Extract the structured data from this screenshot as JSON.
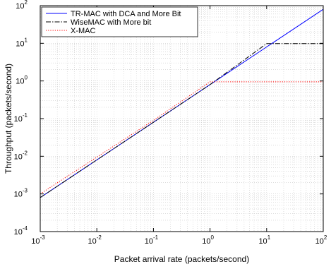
{
  "chart_data": {
    "type": "line",
    "xscale": "log",
    "yscale": "log",
    "xlim": [
      0.001,
      100
    ],
    "ylim": [
      0.0001,
      100
    ],
    "xlabel": "Packet arrival rate (packets/second)",
    "ylabel": "Throughput (packets/second)",
    "x_ticks": [
      {
        "base": "10",
        "exp": "-3"
      },
      {
        "base": "10",
        "exp": "-2"
      },
      {
        "base": "10",
        "exp": "-1"
      },
      {
        "base": "10",
        "exp": "0"
      },
      {
        "base": "10",
        "exp": "1"
      },
      {
        "base": "10",
        "exp": "2"
      }
    ],
    "y_ticks": [
      {
        "base": "10",
        "exp": "-4"
      },
      {
        "base": "10",
        "exp": "-3"
      },
      {
        "base": "10",
        "exp": "-2"
      },
      {
        "base": "10",
        "exp": "-1"
      },
      {
        "base": "10",
        "exp": "0"
      },
      {
        "base": "10",
        "exp": "1"
      },
      {
        "base": "10",
        "exp": "2"
      }
    ],
    "grid": true,
    "legend_position": "top-left",
    "series": [
      {
        "name": "TR-MAC with DCA and More Bit",
        "color": "#0000ff",
        "style": "solid",
        "x": [
          0.001,
          0.01,
          0.1,
          1,
          10,
          100
        ],
        "y": [
          0.0008,
          0.008,
          0.08,
          0.8,
          8,
          80
        ]
      },
      {
        "name": "WiseMAC with More bit",
        "color": "#000000",
        "style": "dashdot",
        "x": [
          0.001,
          0.01,
          0.1,
          1,
          10,
          100
        ],
        "y": [
          0.0008,
          0.008,
          0.08,
          0.8,
          9.8,
          9.8
        ]
      },
      {
        "name": "X-MAC",
        "color": "#ff0000",
        "style": "dotted",
        "x": [
          0.001,
          0.01,
          0.1,
          1,
          100
        ],
        "y": [
          0.001,
          0.0095,
          0.09,
          0.95,
          0.95
        ]
      }
    ]
  }
}
